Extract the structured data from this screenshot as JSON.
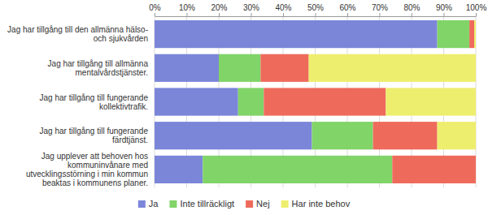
{
  "chart_data": {
    "type": "bar",
    "orientation": "horizontal",
    "stacked": true,
    "grid": true,
    "legend": "bottom",
    "categories": [
      "Jag har tillgång till den allmänna hälso- och sjukvården",
      "Jag har tillgång till allmänna mentalvårdstjänster.",
      "Jag har tillgång till fungerande kollektivtrafik.",
      "Jag har tillgång till fungerande färdtjänst.",
      "Jag upplever att behoven hos kommuninvånare med utvecklingsstörning i min kommun beaktas i kommunens planer."
    ],
    "series": [
      {
        "name": "Ja",
        "color": "#7b86d9",
        "values": [
          88,
          20,
          26,
          49,
          15
        ]
      },
      {
        "name": "Inte tillräckligt",
        "color": "#80d468",
        "values": [
          10,
          13,
          8,
          19,
          59
        ]
      },
      {
        "name": "Nej",
        "color": "#ee6b5c",
        "values": [
          1.5,
          15,
          38,
          20,
          26
        ]
      },
      {
        "name": "Har inte behov",
        "color": "#eeee6e",
        "values": [
          0.5,
          52,
          28,
          12,
          0
        ]
      }
    ],
    "xlim": [
      0,
      100
    ],
    "xticks": [
      {
        "value": 0,
        "label": "0%"
      },
      {
        "value": 10,
        "label": "10%"
      },
      {
        "value": 20,
        "label": "20%"
      },
      {
        "value": 30,
        "label": "30%"
      },
      {
        "value": 40,
        "label": "40%"
      },
      {
        "value": 50,
        "label": "50%"
      },
      {
        "value": 60,
        "label": "60%"
      },
      {
        "value": 70,
        "label": "70%"
      },
      {
        "value": 80,
        "label": "80%"
      },
      {
        "value": 90,
        "label": "90%"
      },
      {
        "value": 100,
        "label": "100%"
      }
    ]
  }
}
